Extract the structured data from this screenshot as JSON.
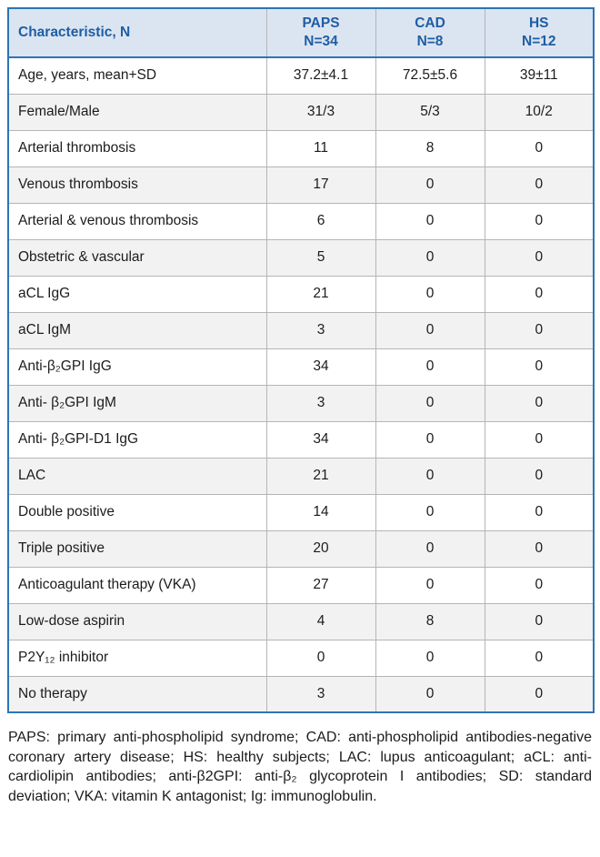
{
  "colors": {
    "header_bg": "#dbe5f1",
    "header_text": "#1f5da4",
    "outer_border": "#2e74b5",
    "inner_border": "#b5b5b5",
    "alt_row_bg": "#f2f2f2"
  },
  "table": {
    "headers": [
      {
        "title": "Characteristic, N",
        "sub": ""
      },
      {
        "title": "PAPS",
        "sub": "N=34"
      },
      {
        "title": "CAD",
        "sub": "N=8"
      },
      {
        "title": "HS",
        "sub": "N=12"
      }
    ],
    "rows": [
      {
        "label": "Age, years, mean+SD",
        "values": [
          "37.2±4.1",
          "72.5±5.6",
          "39±11"
        ]
      },
      {
        "label": "Female/Male",
        "values": [
          "31/3",
          "5/3",
          "10/2"
        ]
      },
      {
        "label": "Arterial thrombosis",
        "values": [
          "11",
          "8",
          "0"
        ]
      },
      {
        "label": "Venous thrombosis",
        "values": [
          "17",
          "0",
          "0"
        ]
      },
      {
        "label": "Arterial & venous thrombosis",
        "values": [
          "6",
          "0",
          "0"
        ]
      },
      {
        "label": "Obstetric & vascular",
        "values": [
          "5",
          "0",
          "0"
        ]
      },
      {
        "label": "aCL IgG",
        "values": [
          "21",
          "0",
          "0"
        ]
      },
      {
        "label": "aCL IgM",
        "values": [
          "3",
          "0",
          "0"
        ]
      },
      {
        "label": "Anti-β₂GPI IgG",
        "values": [
          "34",
          "0",
          "0"
        ]
      },
      {
        "label": "Anti- β₂GPI IgM",
        "values": [
          "3",
          "0",
          "0"
        ]
      },
      {
        "label": "Anti- β₂GPI-D1 IgG",
        "values": [
          "34",
          "0",
          "0"
        ]
      },
      {
        "label": "LAC",
        "values": [
          "21",
          "0",
          "0"
        ]
      },
      {
        "label": "Double positive",
        "values": [
          "14",
          "0",
          "0"
        ]
      },
      {
        "label": "Triple positive",
        "values": [
          "20",
          "0",
          "0"
        ]
      },
      {
        "label": "Anticoagulant therapy (VKA)",
        "values": [
          "27",
          "0",
          "0"
        ]
      },
      {
        "label": "Low-dose aspirin",
        "values": [
          "4",
          "8",
          "0"
        ]
      },
      {
        "label": "P2Y₁₂ inhibitor",
        "values": [
          "0",
          "0",
          "0"
        ]
      },
      {
        "label": "No therapy",
        "values": [
          "3",
          "0",
          "0"
        ]
      }
    ]
  },
  "footnote": "PAPS: primary anti-phospholipid syndrome; CAD: anti-phospholipid antibodies-negative coronary artery disease; HS: healthy subjects; LAC: lupus anticoagulant; aCL: anti-cardiolipin antibodies; anti-β2GPI: anti-β₂ glycoprotein I antibodies; SD: standard deviation; VKA: vitamin K antagonist; Ig: immunoglobulin."
}
